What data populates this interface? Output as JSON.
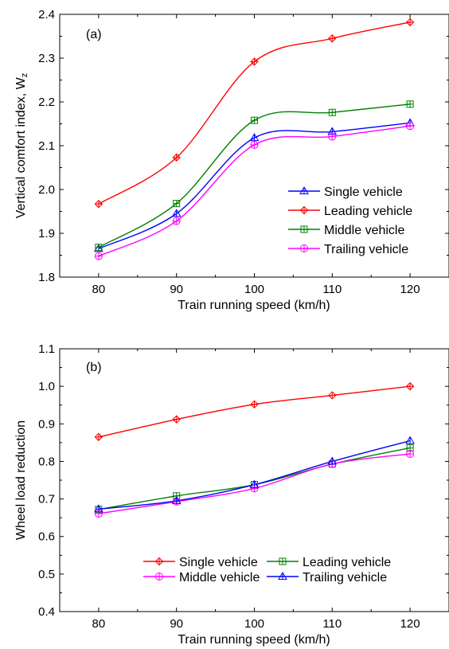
{
  "chart_data": [
    {
      "type": "line",
      "panel_label": "(a)",
      "xlabel": "Train running speed (km/h)",
      "ylabel": "Vertical comfort index, W",
      "ylabel_sub": "z",
      "x": [
        80,
        90,
        100,
        110,
        120
      ],
      "xlim": [
        75,
        125
      ],
      "ylim": [
        1.8,
        2.4
      ],
      "xticks": [
        "80",
        "90",
        "100",
        "110",
        "120"
      ],
      "yticks": [
        "1.8",
        "1.9",
        "2.0",
        "2.1",
        "2.2",
        "2.3",
        "2.4"
      ],
      "legend_position": "lower-right",
      "series": [
        {
          "name": "Single vehicle",
          "color": "#0000ff",
          "marker": "triangle",
          "values": [
            1.865,
            1.945,
            2.118,
            2.132,
            2.152
          ]
        },
        {
          "name": "Leading vehicle",
          "color": "#ff0000",
          "marker": "diamond",
          "values": [
            1.967,
            2.073,
            2.292,
            2.345,
            2.382
          ]
        },
        {
          "name": "Middle vehicle",
          "color": "#008000",
          "marker": "square",
          "values": [
            1.868,
            1.968,
            2.158,
            2.176,
            2.195
          ]
        },
        {
          "name": "Trailing vehicle",
          "color": "#ff00ff",
          "marker": "circle",
          "values": [
            1.848,
            1.928,
            2.102,
            2.121,
            2.145
          ]
        }
      ]
    },
    {
      "type": "line",
      "panel_label": "(b)",
      "xlabel": "Train running speed (km/h)",
      "ylabel": "Wheel load reduction",
      "x": [
        80,
        90,
        100,
        110,
        120
      ],
      "xlim": [
        75,
        125
      ],
      "ylim": [
        0.4,
        1.1
      ],
      "xticks": [
        "80",
        "90",
        "100",
        "110",
        "120"
      ],
      "yticks": [
        "0.4",
        "0.5",
        "0.6",
        "0.7",
        "0.8",
        "0.9",
        "1.0",
        "1.1"
      ],
      "legend_position": "bottom, two columns",
      "series": [
        {
          "name": "Single vehicle",
          "color": "#ff0000",
          "marker": "diamond",
          "values": [
            0.865,
            0.912,
            0.952,
            0.976,
            1.0
          ]
        },
        {
          "name": "Leading vehicle",
          "color": "#008000",
          "marker": "square",
          "values": [
            0.672,
            0.708,
            0.738,
            0.793,
            0.836
          ]
        },
        {
          "name": "Middle vehicle",
          "color": "#ff00ff",
          "marker": "circle",
          "values": [
            0.661,
            0.693,
            0.728,
            0.793,
            0.82
          ]
        },
        {
          "name": "Trailing vehicle",
          "color": "#0000ff",
          "marker": "triangle",
          "values": [
            0.673,
            0.695,
            0.738,
            0.8,
            0.855
          ]
        }
      ]
    }
  ]
}
